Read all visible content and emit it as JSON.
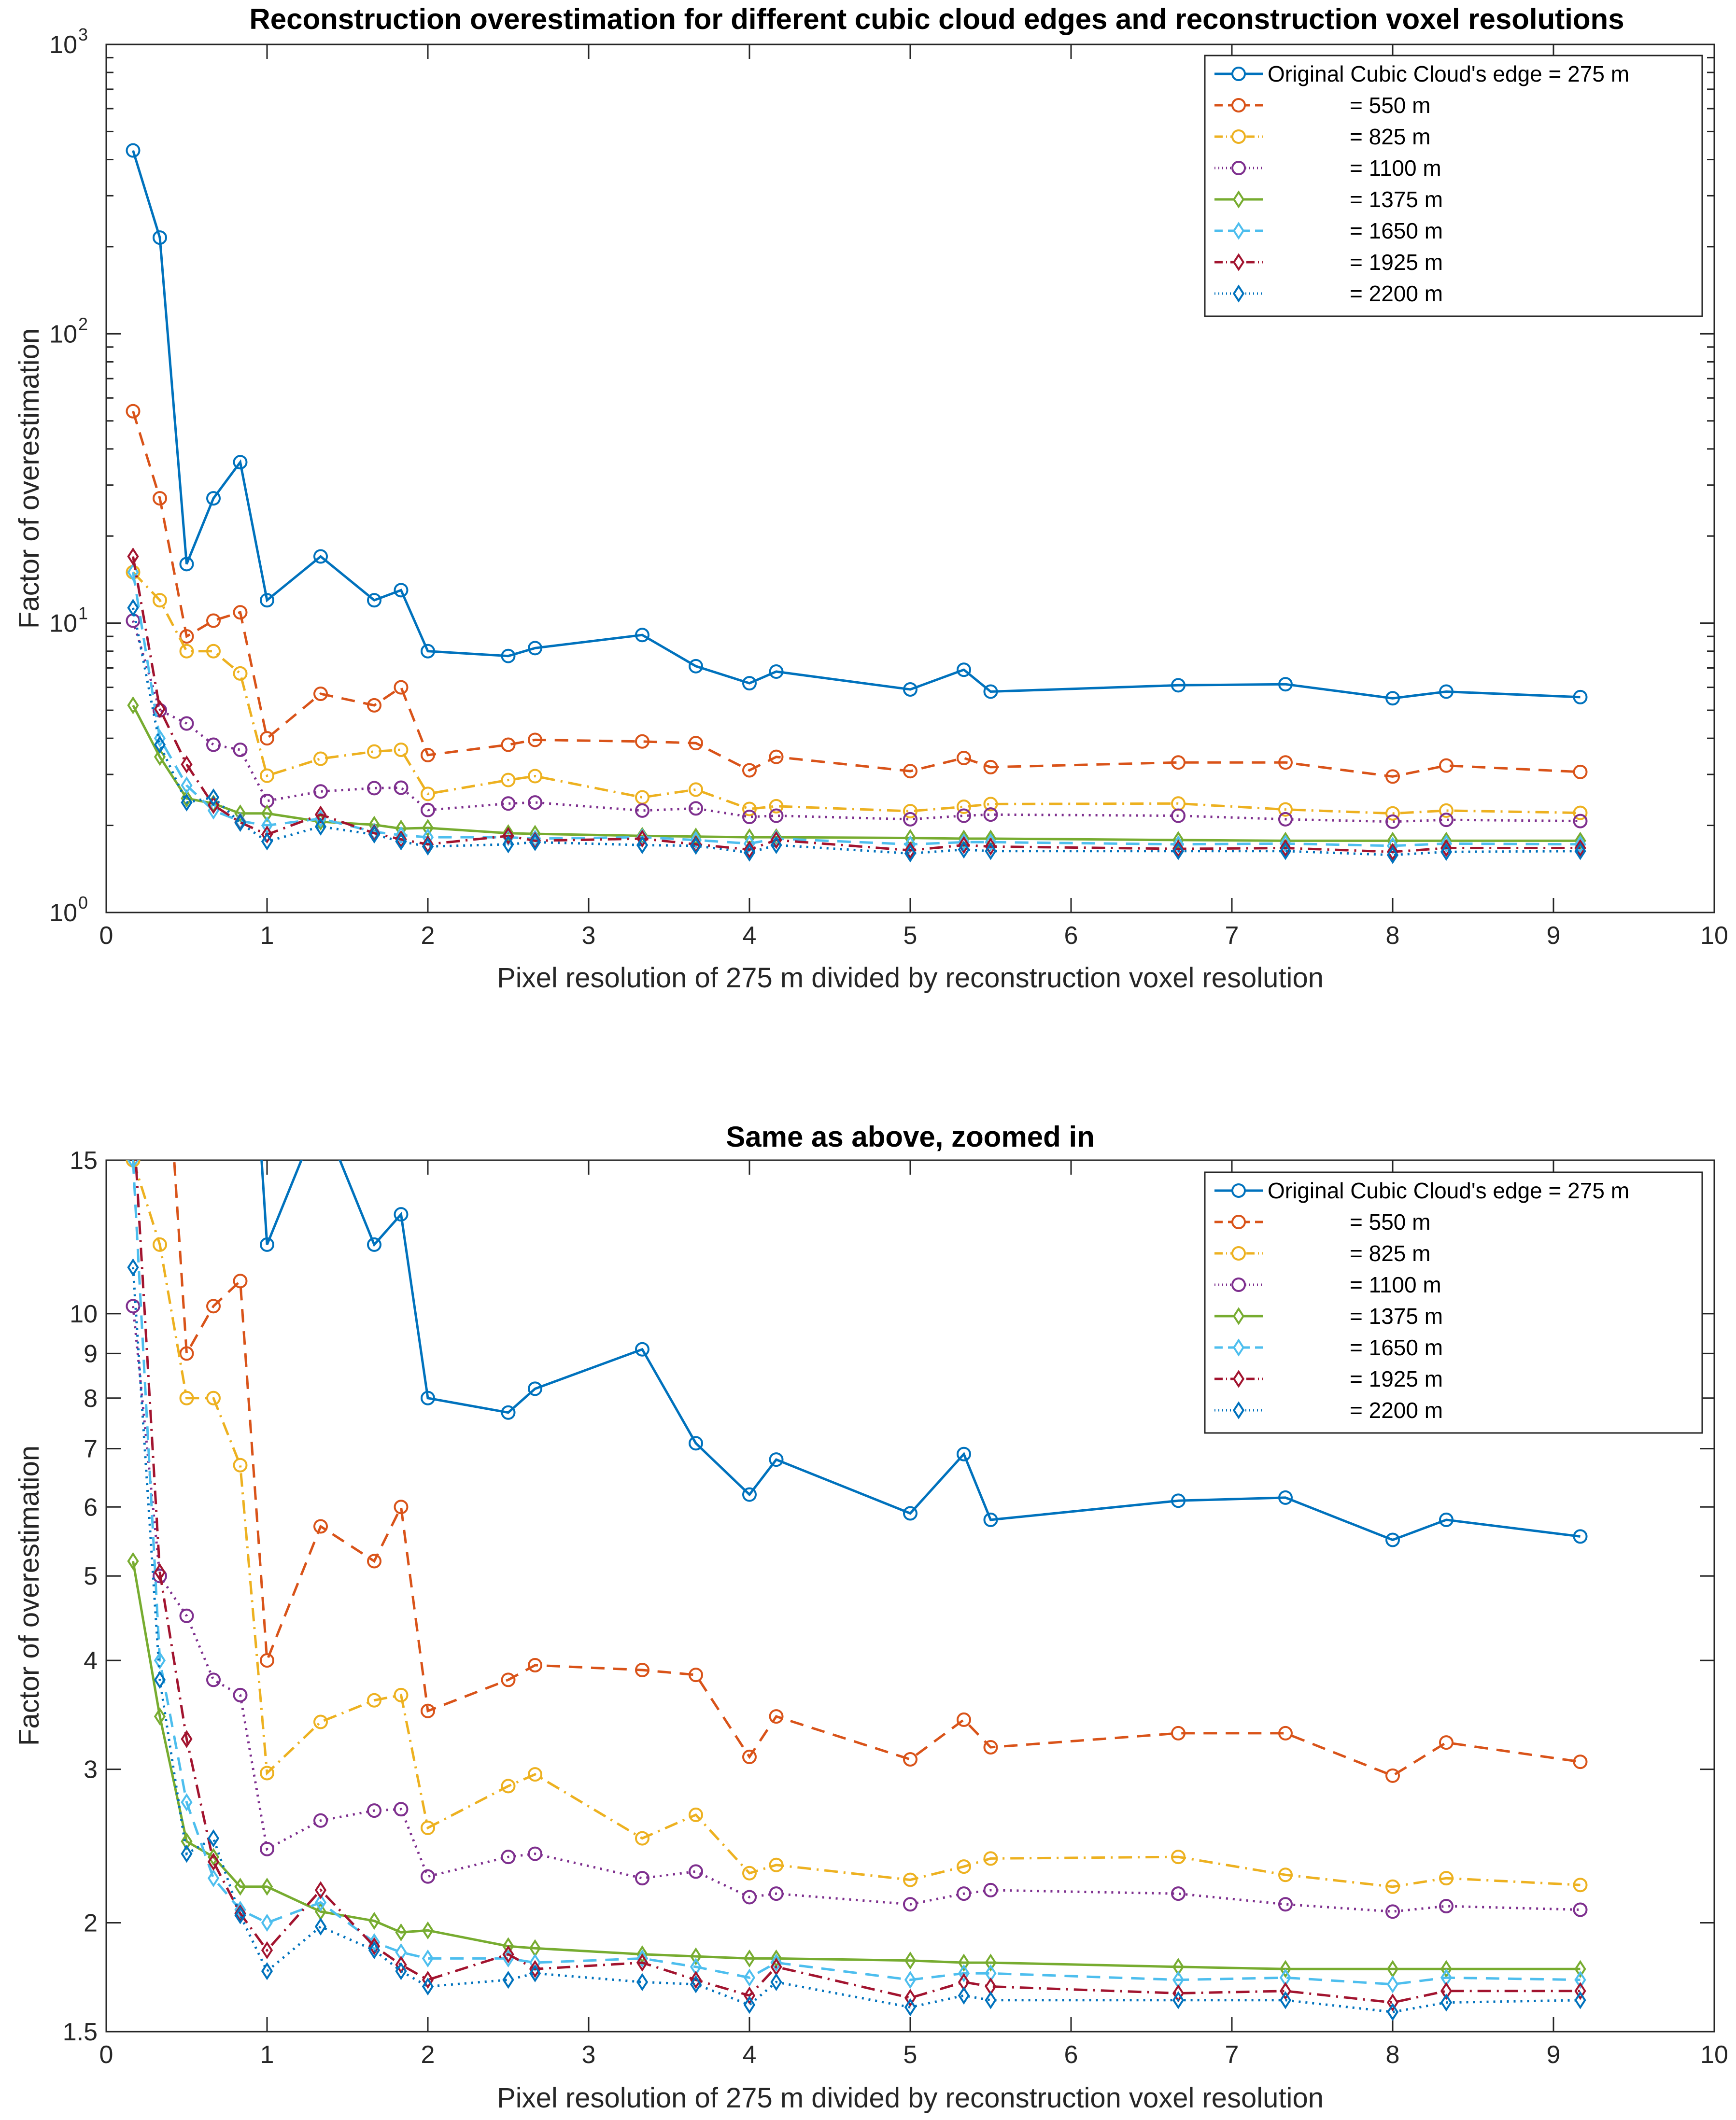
{
  "chart_data": [
    {
      "type": "line",
      "title": "Reconstruction overestimation for different cubic cloud edges and reconstruction voxel resolutions",
      "xlabel": "Pixel resolution of 275 m divided by reconstruction voxel resolution",
      "ylabel": "Factor of overestimation",
      "yscale": "log",
      "xlim": [
        0,
        10
      ],
      "ylim": [
        1,
        1000
      ],
      "xticks": [
        "0",
        "1",
        "2",
        "3",
        "4",
        "5",
        "6",
        "7",
        "8",
        "9",
        "10"
      ],
      "yticks": [
        {
          "value": 1,
          "base": "10",
          "exp": "0"
        },
        {
          "value": 10,
          "base": "10",
          "exp": "1"
        },
        {
          "value": 100,
          "base": "10",
          "exp": "2"
        },
        {
          "value": 1000,
          "base": "10",
          "exp": "3"
        }
      ],
      "legend_position": "top-right"
    },
    {
      "type": "line",
      "title": "Same as above, zoomed in",
      "xlabel": "Pixel resolution of 275 m divided by reconstruction voxel resolution",
      "ylabel": "Factor of overestimation",
      "yscale": "log",
      "xlim": [
        0,
        10
      ],
      "ylim": [
        1.5,
        15
      ],
      "xticks": [
        "0",
        "1",
        "2",
        "3",
        "4",
        "5",
        "6",
        "7",
        "8",
        "9",
        "10"
      ],
      "yticks": [
        {
          "value": 1.5,
          "label": "1.5"
        },
        {
          "value": 2,
          "label": "2"
        },
        {
          "value": 3,
          "label": "3"
        },
        {
          "value": 4,
          "label": "4"
        },
        {
          "value": 5,
          "label": "5"
        },
        {
          "value": 6,
          "label": "6"
        },
        {
          "value": 7,
          "label": "7"
        },
        {
          "value": 8,
          "label": "8"
        },
        {
          "value": 9,
          "label": "9"
        },
        {
          "value": 10,
          "label": "10"
        },
        {
          "value": 15,
          "label": "15"
        }
      ],
      "legend_position": "top-right"
    }
  ],
  "x": [
    0.1667,
    0.3333,
    0.5,
    0.6667,
    0.8333,
    1.0,
    1.3333,
    1.6667,
    1.8333,
    2.0,
    2.5,
    2.6667,
    3.3333,
    3.6667,
    4.0,
    4.1667,
    5.0,
    5.3333,
    5.5,
    6.6667,
    7.3333,
    8.0,
    8.3333,
    9.1667
  ],
  "series": [
    {
      "name": "Original Cubic Cloud's edge = 275 m",
      "color": "#0072BD",
      "dash": "",
      "marker": "circle",
      "values": [
        430,
        215,
        16,
        27,
        36,
        12.0,
        17,
        12.0,
        13.0,
        8.0,
        7.7,
        8.2,
        9.1,
        7.1,
        6.2,
        6.8,
        5.9,
        6.9,
        5.8,
        6.1,
        6.15,
        5.5,
        5.8,
        5.55
      ]
    },
    {
      "name": "= 550 m",
      "color": "#D95319",
      "dash": "28,18",
      "marker": "circle",
      "values": [
        54,
        27,
        9.0,
        10.2,
        10.9,
        4.0,
        5.7,
        5.2,
        6.0,
        3.5,
        3.8,
        3.95,
        3.9,
        3.85,
        3.1,
        3.45,
        3.08,
        3.42,
        3.18,
        3.3,
        3.3,
        2.95,
        3.22,
        3.06
      ]
    },
    {
      "name": "= 825 m",
      "color": "#EDB120",
      "dash": "28,12,4,12",
      "marker": "circle",
      "values": [
        15,
        12,
        8.0,
        8.0,
        6.7,
        2.97,
        3.4,
        3.6,
        3.65,
        2.57,
        2.87,
        2.96,
        2.5,
        2.66,
        2.28,
        2.33,
        2.24,
        2.32,
        2.37,
        2.38,
        2.27,
        2.2,
        2.25,
        2.21
      ]
    },
    {
      "name": "= 1100 m",
      "color": "#7E2F8E",
      "dash": "4,10",
      "marker": "circle",
      "values": [
        10.2,
        5.0,
        4.5,
        3.8,
        3.65,
        2.43,
        2.62,
        2.69,
        2.7,
        2.26,
        2.38,
        2.4,
        2.25,
        2.29,
        2.14,
        2.16,
        2.1,
        2.16,
        2.18,
        2.16,
        2.1,
        2.06,
        2.09,
        2.07
      ]
    },
    {
      "name": "= 1375 m",
      "color": "#77AC30",
      "dash": "",
      "marker": "diamond",
      "values": [
        5.2,
        3.45,
        2.48,
        2.38,
        2.2,
        2.2,
        2.06,
        2.01,
        1.95,
        1.96,
        1.88,
        1.87,
        1.84,
        1.83,
        1.82,
        1.82,
        1.81,
        1.8,
        1.8,
        1.78,
        1.77,
        1.77,
        1.77,
        1.77
      ]
    },
    {
      "name": "= 1650 m",
      "color": "#4DBEEE",
      "dash": "28,18",
      "marker": "diamond",
      "values": [
        15,
        4.0,
        2.75,
        2.25,
        2.07,
        2.0,
        2.11,
        1.9,
        1.85,
        1.82,
        1.82,
        1.8,
        1.82,
        1.78,
        1.73,
        1.8,
        1.72,
        1.75,
        1.75,
        1.72,
        1.73,
        1.7,
        1.73,
        1.72
      ]
    },
    {
      "name": "= 1925 m",
      "color": "#A2142F",
      "dash": "28,12,4,12",
      "marker": "diamond",
      "values": [
        17,
        5.05,
        3.25,
        2.35,
        2.05,
        1.86,
        2.18,
        1.88,
        1.79,
        1.72,
        1.84,
        1.77,
        1.8,
        1.72,
        1.65,
        1.78,
        1.64,
        1.71,
        1.69,
        1.66,
        1.67,
        1.62,
        1.67,
        1.67
      ]
    },
    {
      "name": "= 2200 m",
      "color": "#0072BD",
      "dash": "4,10",
      "marker": "diamond",
      "values": [
        11.3,
        3.8,
        2.4,
        2.5,
        2.04,
        1.76,
        1.98,
        1.86,
        1.76,
        1.69,
        1.72,
        1.75,
        1.71,
        1.7,
        1.61,
        1.71,
        1.6,
        1.65,
        1.63,
        1.63,
        1.63,
        1.58,
        1.62,
        1.63
      ]
    }
  ]
}
